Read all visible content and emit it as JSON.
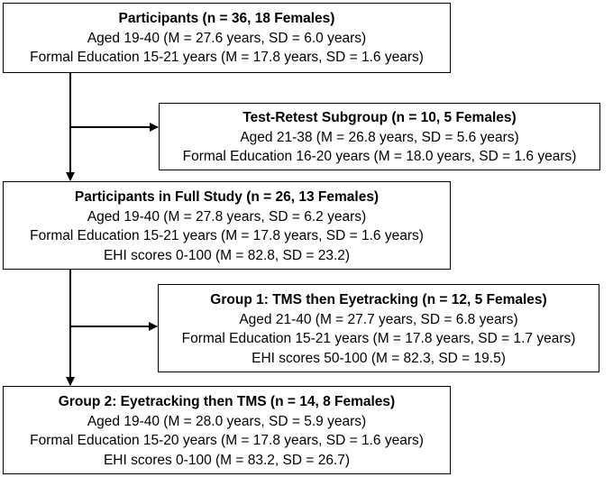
{
  "participants": {
    "title": "Participants (n = 36, 18 Females)",
    "lines": [
      "Aged 19-40 (M = 27.6 years, SD = 6.0 years)",
      "Formal Education 15-21 years (M = 17.8 years, SD = 1.6 years)"
    ]
  },
  "retest": {
    "title": "Test-Retest Subgroup (n = 10, 5 Females)",
    "lines": [
      "Aged 21-38 (M = 26.8 years, SD = 5.6 years)",
      "Formal Education 16-20 years (M = 18.0 years, SD = 1.6 years)"
    ]
  },
  "full_study": {
    "title": "Participants in Full Study (n = 26, 13 Females)",
    "lines": [
      "Aged 19-40 (M = 27.8 years, SD = 6.2 years)",
      "Formal Education 15-21 years (M = 17.8 years, SD = 1.6 years)",
      "EHI scores 0-100 (M = 82.8, SD = 23.2)"
    ]
  },
  "group1": {
    "title": "Group 1: TMS then Eyetracking (n = 12, 5 Females)",
    "lines": [
      "Aged 21-40 (M = 27.7 years, SD = 6.8 years)",
      "Formal Education 15-21 years (M = 17.8 years, SD = 1.7 years)",
      "EHI scores 50-100 (M = 82.3, SD = 19.5)"
    ]
  },
  "group2": {
    "title": "Group 2: Eyetracking then TMS (n = 14, 8 Females)",
    "lines": [
      "Aged 19-40 (M = 28.0 years, SD = 5.9 years)",
      "Formal Education 15-20 years (M = 17.8 years, SD = 1.6 years)",
      "EHI scores 0-100 (M = 83.2, SD = 26.7)"
    ]
  }
}
